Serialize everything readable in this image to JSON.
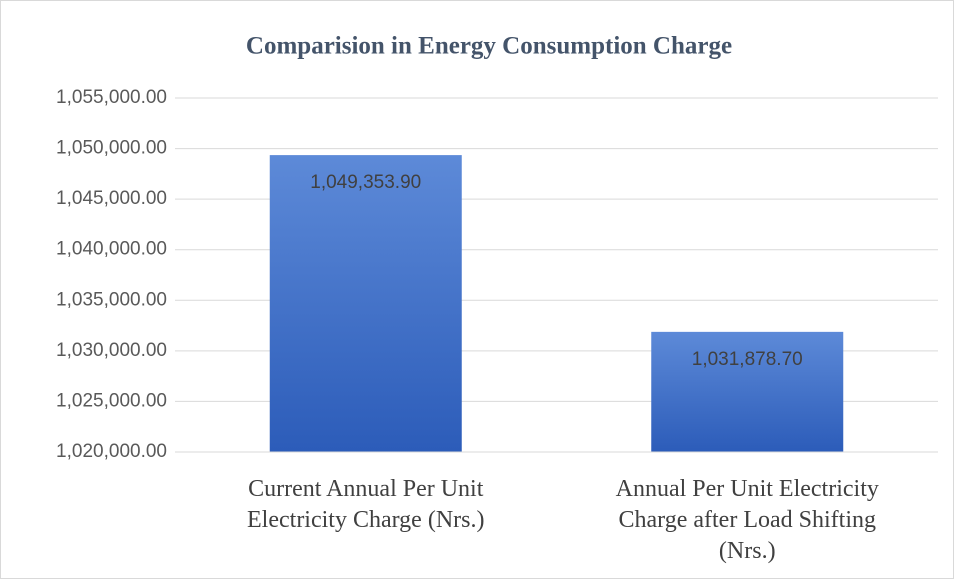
{
  "chart_data": {
    "type": "bar",
    "title": "Comparision in Energy Consumption Charge",
    "categories": [
      "Current Annual Per Unit Electricity Charge (Nrs.)",
      "Annual Per Unit Electricity Charge after Load Shifting (Nrs.)"
    ],
    "values": [
      1049353.9,
      1031878.7
    ],
    "value_labels": [
      "1,049,353.90",
      "1,031,878.70"
    ],
    "color": "#4472c4",
    "ylim": [
      1020000,
      1055000
    ],
    "yticks": [
      {
        "value": 1020000,
        "label": "1,020,000.00"
      },
      {
        "value": 1025000,
        "label": "1,025,000.00"
      },
      {
        "value": 1030000,
        "label": "1,030,000.00"
      },
      {
        "value": 1035000,
        "label": "1,035,000.00"
      },
      {
        "value": 1040000,
        "label": "1,040,000.00"
      },
      {
        "value": 1045000,
        "label": "1,045,000.00"
      },
      {
        "value": 1050000,
        "label": "1,050,000.00"
      },
      {
        "value": 1055000,
        "label": "1,055,000.00"
      }
    ],
    "grid": true
  }
}
